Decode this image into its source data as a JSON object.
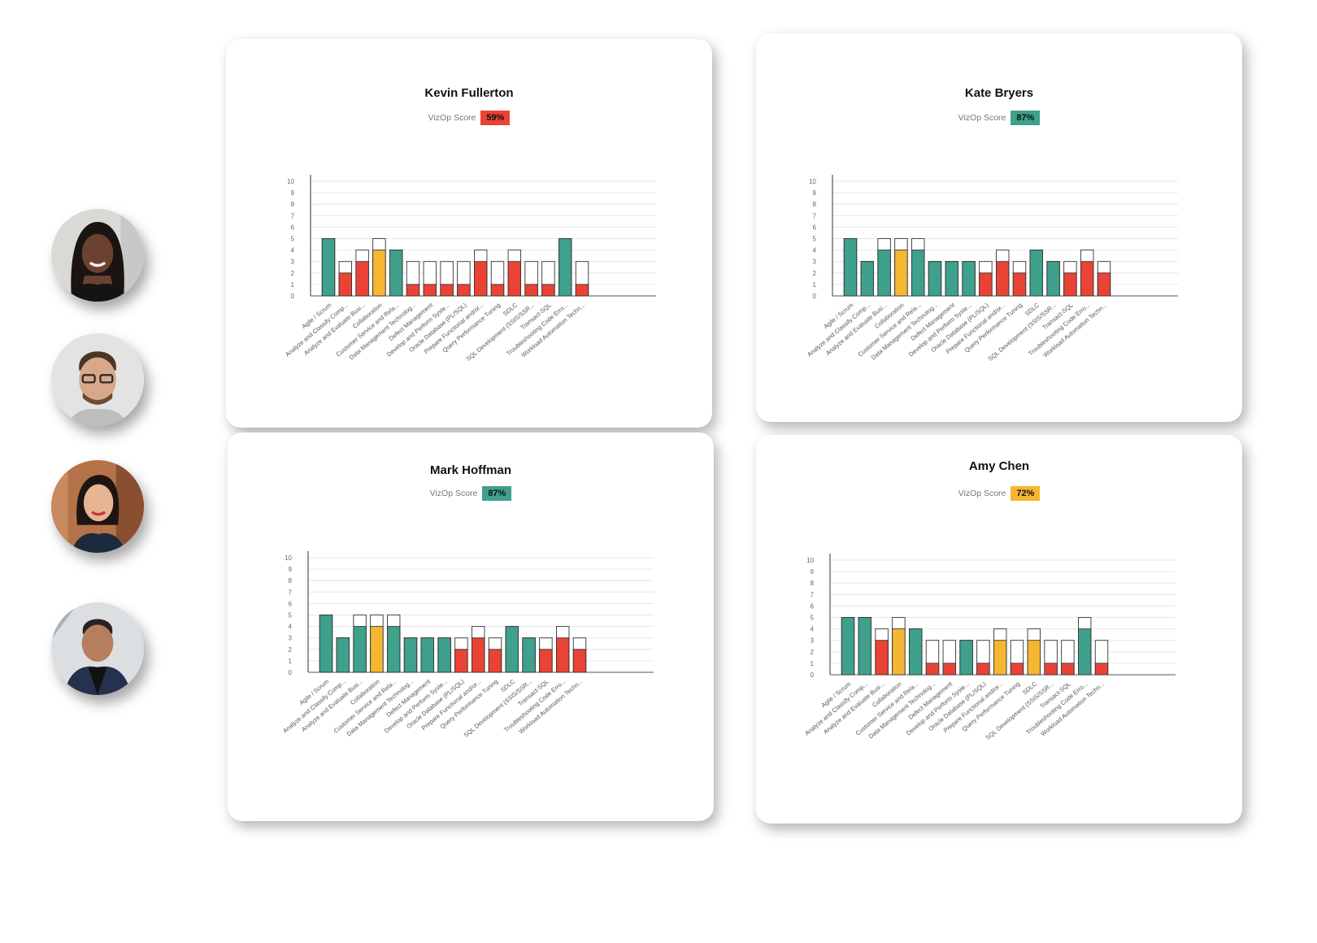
{
  "colors": {
    "green": "#3fa08b",
    "red": "#ea4335",
    "yellow": "#f5b731",
    "axis": "#555555",
    "grid": "#e6e6e6"
  },
  "avatars": [
    {
      "name": "avatar-woman-braids"
    },
    {
      "name": "avatar-man-glasses"
    },
    {
      "name": "avatar-woman-asian"
    },
    {
      "name": "avatar-man-jacket"
    }
  ],
  "cards": [
    {
      "title": "Kevin Fullerton",
      "score_label": "VizOp Score",
      "score_value": "59%",
      "score_color": "#ea4335"
    },
    {
      "title": "Kate Bryers",
      "score_label": "VizOp Score",
      "score_value": "87%",
      "score_color": "#3fa08b"
    },
    {
      "title": "Mark Hoffman",
      "score_label": "VizOp Score",
      "score_value": "87%",
      "score_color": "#3fa08b"
    },
    {
      "title": "Amy Chen",
      "score_label": "VizOp Score",
      "score_value": "72%",
      "score_color": "#f5b731"
    }
  ],
  "chart_data": [
    {
      "type": "bar",
      "title": "Kevin Fullerton",
      "categories": [
        "Agile / Scrum",
        "Analyze and Classify Comp...",
        "Analyze and Evaluate Busi...",
        "Collaboration",
        "Customer Service and Rela...",
        "Data Management Technolog...",
        "Defect Management",
        "Develop and Perform Syste...",
        "Oracle Database (PL/SQL)",
        "Prepare Functional and/or...",
        "Query Performance Tuning",
        "SDLC",
        "SQL Development (SSIS/SSR...",
        "Transact-SQL",
        "Troubleshooting Code Erro...",
        "Workload Automation Techn..."
      ],
      "series": [
        {
          "values": [
            5,
            2,
            3,
            4,
            4,
            1,
            1,
            1,
            1,
            3,
            1,
            3,
            1,
            1,
            5,
            1
          ]
        },
        {
          "values": [
            5,
            3,
            4,
            5,
            4,
            3,
            3,
            3,
            3,
            4,
            3,
            4,
            3,
            3,
            5,
            3
          ]
        }
      ],
      "colors": [
        "green",
        "red",
        "red",
        "yellow",
        "green",
        "red",
        "red",
        "red",
        "red",
        "red",
        "red",
        "red",
        "red",
        "red",
        "green",
        "red"
      ],
      "ylim": [
        0,
        10
      ],
      "yticks": [
        0,
        1,
        2,
        3,
        4,
        5,
        6,
        7,
        8,
        9,
        10
      ],
      "grid": true
    },
    {
      "type": "bar",
      "title": "Kate Bryers",
      "categories": [
        "Agile / Scrum",
        "Analyze and Classify Comp...",
        "Analyze and Evaluate Busi...",
        "Collaboration",
        "Customer Service and Rela...",
        "Data Management Technolog...",
        "Defect Management",
        "Develop and Perform Syste...",
        "Oracle Database (PL/SQL)",
        "Prepare Functional and/or...",
        "Query Performance Tuning",
        "SDLC",
        "SQL Development (SSIS/SSR...",
        "Transact-SQL",
        "Troubleshooting Code Erro...",
        "Workload Automation Techn..."
      ],
      "series": [
        {
          "values": [
            5,
            3,
            4,
            4,
            4,
            3,
            3,
            3,
            2,
            3,
            2,
            4,
            3,
            2,
            3,
            2
          ]
        },
        {
          "values": [
            5,
            3,
            5,
            5,
            5,
            3,
            3,
            3,
            3,
            4,
            3,
            4,
            3,
            3,
            4,
            3
          ]
        }
      ],
      "colors": [
        "green",
        "green",
        "green",
        "yellow",
        "green",
        "green",
        "green",
        "green",
        "red",
        "red",
        "red",
        "green",
        "green",
        "red",
        "red",
        "red"
      ],
      "ylim": [
        0,
        10
      ],
      "yticks": [
        0,
        1,
        2,
        3,
        4,
        5,
        6,
        7,
        8,
        9,
        10
      ],
      "grid": true
    },
    {
      "type": "bar",
      "title": "Mark Hoffman",
      "categories": [
        "Agile / Scrum",
        "Analyze and Classify Comp...",
        "Analyze and Evaluate Busi...",
        "Collaboration",
        "Customer Service and Rela...",
        "Data Management Technolog...",
        "Defect Management",
        "Develop and Perform Syste...",
        "Oracle Database (PL/SQL)",
        "Prepare Functional and/or...",
        "Query Performance Tuning",
        "SDLC",
        "SQL Development (SSIS/SSR...",
        "Transact-SQL",
        "Troubleshooting Code Erro...",
        "Workload Automation Techn..."
      ],
      "series": [
        {
          "values": [
            5,
            3,
            4,
            4,
            4,
            3,
            3,
            3,
            2,
            3,
            2,
            4,
            3,
            2,
            3,
            2
          ]
        },
        {
          "values": [
            5,
            3,
            5,
            5,
            5,
            3,
            3,
            3,
            3,
            4,
            3,
            4,
            3,
            3,
            4,
            3
          ]
        }
      ],
      "colors": [
        "green",
        "green",
        "green",
        "yellow",
        "green",
        "green",
        "green",
        "green",
        "red",
        "red",
        "red",
        "green",
        "green",
        "red",
        "red",
        "red"
      ],
      "ylim": [
        0,
        10
      ],
      "yticks": [
        0,
        1,
        2,
        3,
        4,
        5,
        6,
        7,
        8,
        9,
        10
      ],
      "grid": true
    },
    {
      "type": "bar",
      "title": "Amy Chen",
      "categories": [
        "Agile / Scrum",
        "Analyze and Classify Comp...",
        "Analyze and Evaluate Busi...",
        "Collaboration",
        "Customer Service and Rela...",
        "Data Management Technolog...",
        "Defect Management",
        "Develop and Perform Syste...",
        "Oracle Database (PL/SQL)",
        "Prepare Functional and/or...",
        "Query Performance Tuning",
        "SDLC",
        "SQL Development (SSIS/SSR...",
        "Transact-SQL",
        "Troubleshooting Code Erro...",
        "Workload Automation Techn..."
      ],
      "series": [
        {
          "values": [
            5,
            5,
            3,
            4,
            4,
            1,
            1,
            3,
            1,
            3,
            1,
            3,
            1,
            1,
            4,
            1
          ]
        },
        {
          "values": [
            5,
            5,
            4,
            5,
            4,
            3,
            3,
            3,
            3,
            4,
            3,
            4,
            3,
            3,
            5,
            3
          ]
        }
      ],
      "colors": [
        "green",
        "green",
        "red",
        "yellow",
        "green",
        "red",
        "red",
        "green",
        "red",
        "yellow",
        "red",
        "yellow",
        "red",
        "red",
        "green",
        "red"
      ],
      "ylim": [
        0,
        10
      ],
      "yticks": [
        0,
        1,
        2,
        3,
        4,
        5,
        6,
        7,
        8,
        9,
        10
      ],
      "grid": true
    }
  ]
}
